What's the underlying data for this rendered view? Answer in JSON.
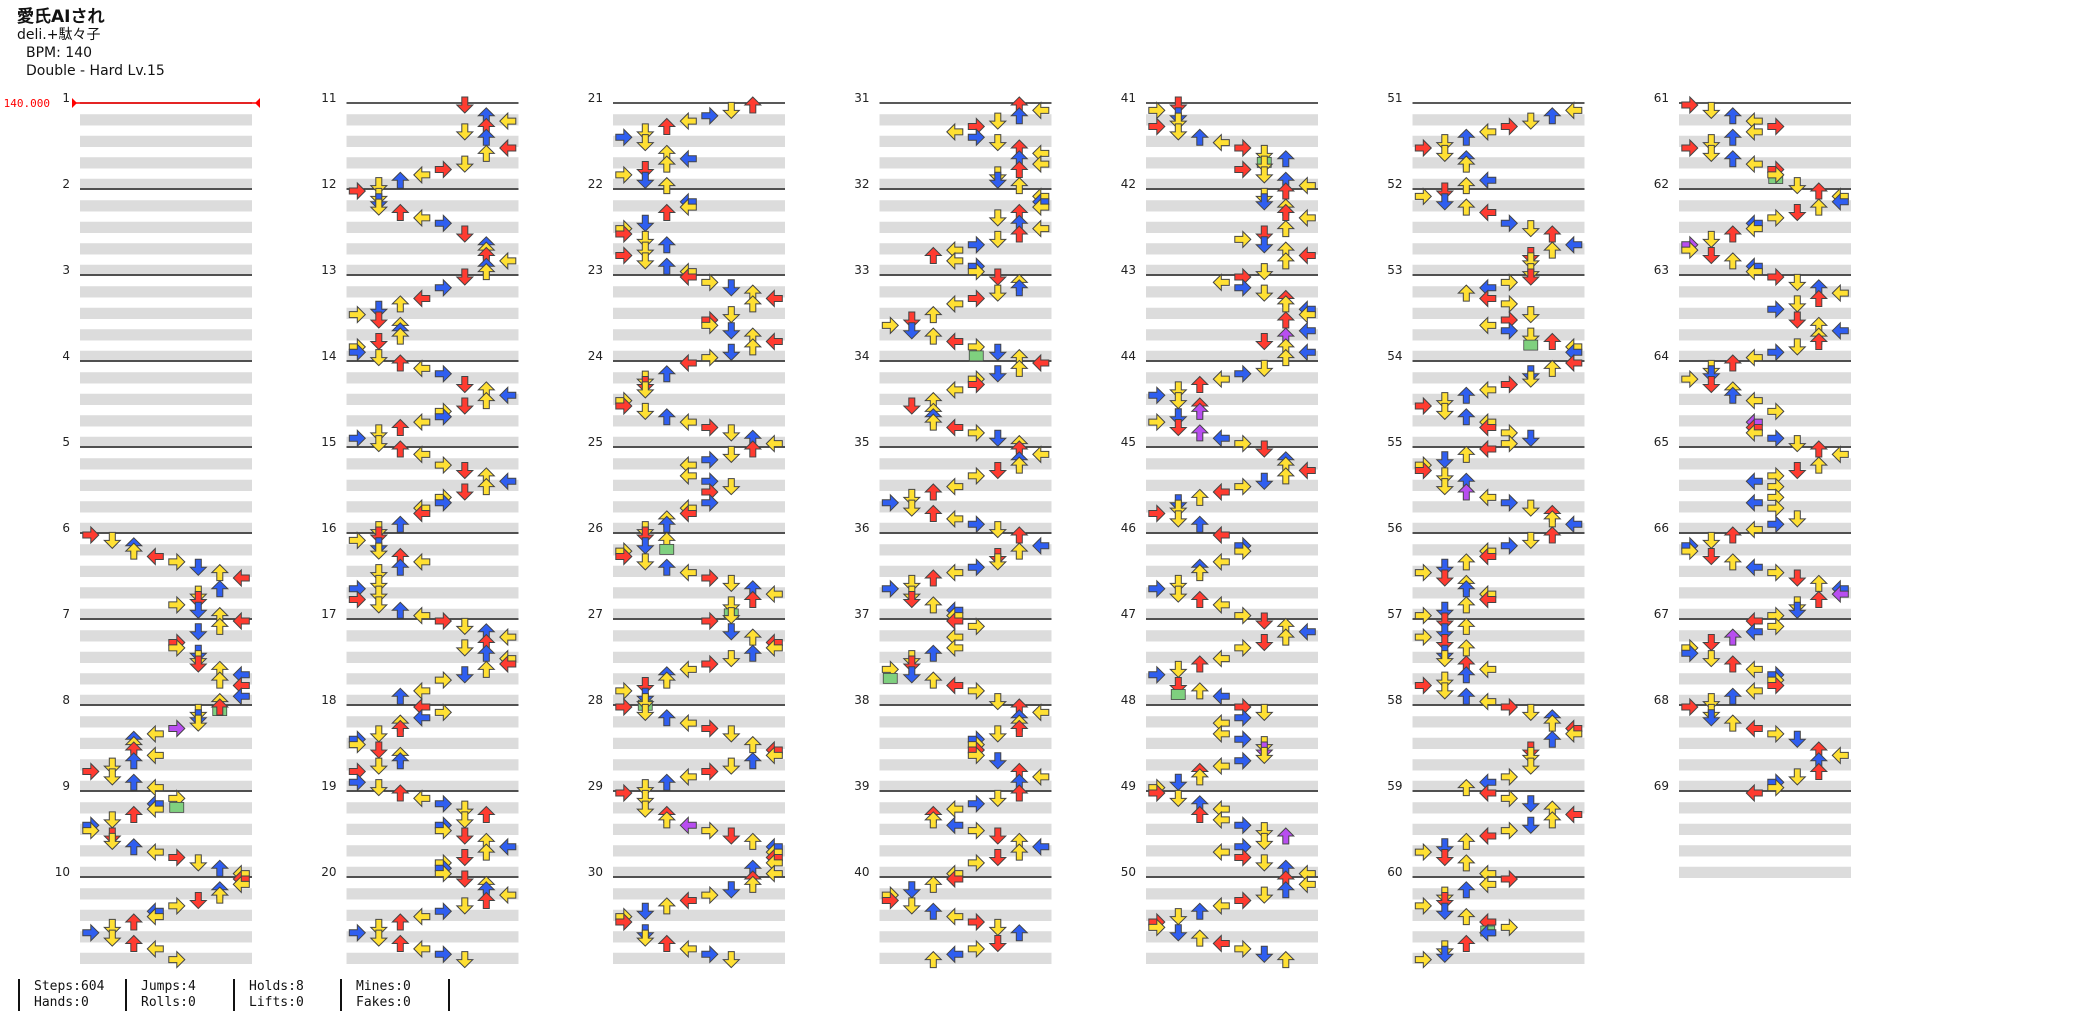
{
  "song": {
    "title": "愛氏AIされ",
    "artist": "deli.+駄々子",
    "bpm_label": "BPM: 140",
    "difficulty_label": "Double - Hard Lv.15"
  },
  "chart_data": {
    "type": "step-chart",
    "style": "double",
    "bpm_marker": "140.000",
    "measure_numbers": [
      "1",
      "2",
      "3",
      "4",
      "5",
      "6",
      "7",
      "8",
      "9",
      "10",
      "11",
      "12",
      "13",
      "14",
      "15",
      "16",
      "17",
      "18",
      "19",
      "20",
      "21",
      "22",
      "23",
      "24",
      "25",
      "26",
      "27",
      "28",
      "29",
      "30",
      "31",
      "32",
      "33",
      "34",
      "35",
      "36",
      "37",
      "38",
      "39",
      "40",
      "41",
      "42",
      "43",
      "44",
      "45",
      "46",
      "47",
      "48",
      "49",
      "50",
      "51",
      "52",
      "53",
      "54",
      "55",
      "56",
      "57",
      "58",
      "59",
      "60",
      "61",
      "62",
      "63",
      "64",
      "65",
      "66",
      "67",
      "68",
      "69"
    ],
    "measures_per_column": 10,
    "columns": 7,
    "lanes": 8,
    "colors": {
      "quarter": "#ff3b30",
      "eighth": "#2f5ef0",
      "sixteenth": "#ffe033",
      "special": "#b84ef0",
      "hold_head": "#7fd07f",
      "bpm": "#ff0000",
      "stripe": "#dcdcdc"
    }
  },
  "stats": [
    {
      "top": "Steps:604",
      "bottom": "Hands:0"
    },
    {
      "top": "Jumps:4",
      "bottom": "Rolls:0"
    },
    {
      "top": "Holds:8",
      "bottom": "Lifts:0"
    },
    {
      "top": "Mines:0",
      "bottom": "Fakes:0"
    }
  ]
}
